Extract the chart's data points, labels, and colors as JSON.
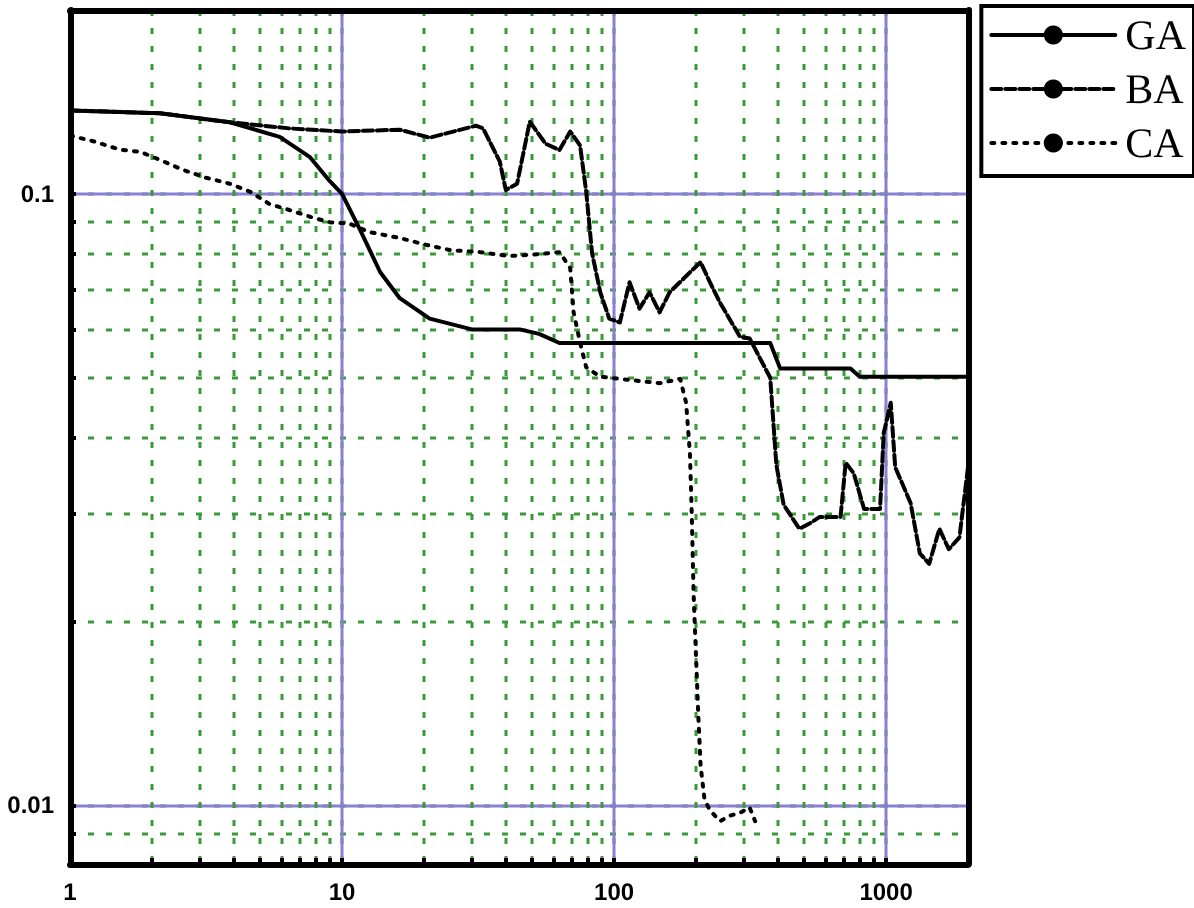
{
  "chart_data": {
    "type": "line",
    "log": "xy",
    "grid": true,
    "legend": "top right",
    "marker": "none",
    "xlim": [
      1,
      2000
    ],
    "xticks": [
      1,
      {
        "value": 2,
        "label": null
      },
      {
        "value": 3,
        "label": null
      },
      {
        "value": 4,
        "label": null
      },
      {
        "value": 5,
        "label": null
      },
      {
        "value": 6,
        "label": null
      },
      {
        "value": 7,
        "label": null
      },
      {
        "value": 8,
        "label": null
      },
      {
        "value": 9,
        "label": null
      },
      10,
      {
        "value": 20,
        "label": null
      },
      {
        "value": 30,
        "label": null
      },
      {
        "value": 40,
        "label": null
      },
      {
        "value": 50,
        "label": null
      },
      {
        "value": 60,
        "label": null
      },
      {
        "value": 70,
        "label": null
      },
      {
        "value": 80,
        "label": null
      },
      {
        "value": 90,
        "label": null
      },
      100,
      {
        "value": 200,
        "label": null
      },
      {
        "value": 300,
        "label": null
      },
      {
        "value": 400,
        "label": null
      },
      {
        "value": 500,
        "label": null
      },
      {
        "value": 600,
        "label": null
      },
      {
        "value": 700,
        "label": null
      },
      {
        "value": 800,
        "label": null
      },
      {
        "value": 900,
        "label": null
      },
      1000
    ],
    "ylim": [
      0.008,
      0.2
    ],
    "yticks": [
      {
        "value": 0.009,
        "label": null
      },
      0.01,
      {
        "value": 0.02,
        "label": null
      },
      {
        "value": 0.03,
        "label": null
      },
      {
        "value": 0.04,
        "label": null
      },
      {
        "value": 0.05,
        "label": null
      },
      {
        "value": 0.06,
        "label": null
      },
      {
        "value": 0.07,
        "label": null
      },
      {
        "value": 0.08,
        "label": null
      },
      {
        "value": 0.09,
        "label": null
      },
      0.1,
      {
        "value": 0.2,
        "label": null
      }
    ],
    "series": [
      {
        "name": "GA",
        "color": "#000000",
        "line_style": "solid",
        "x": [
          1,
          2.14,
          3.87,
          5.9,
          7.6,
          9,
          10,
          11.7,
          13.8,
          16.3,
          21,
          30,
          45,
          53,
          63,
          89,
          343,
          375,
          408,
          740,
          800,
          2000
        ],
        "values": [
          0.137,
          0.1355,
          0.131,
          0.124,
          0.115,
          0.105,
          0.1,
          0.087,
          0.0745,
          0.0675,
          0.0625,
          0.06,
          0.06,
          0.059,
          0.057,
          0.057,
          0.057,
          0.057,
          0.0518,
          0.0518,
          0.0502,
          0.0502
        ]
      },
      {
        "name": "BA",
        "color": "#000000",
        "line_style": "dashed",
        "x": [
          1,
          2.14,
          3.87,
          6.4,
          10,
          16.3,
          21,
          31,
          33,
          38,
          40,
          44,
          49,
          56,
          63,
          69,
          75,
          79,
          83,
          89,
          96,
          105,
          114,
          124,
          135,
          147,
          160,
          190,
          208,
          225,
          245,
          290,
          315,
          375,
          395,
          420,
          480,
          525,
          570,
          680,
          710,
          760,
          830,
          950,
          980,
          1040,
          1080,
          1230,
          1330,
          1440,
          1570,
          1700,
          1860,
          2000
        ],
        "values": [
          0.137,
          0.1355,
          0.131,
          0.128,
          0.1265,
          0.1274,
          0.1236,
          0.1293,
          0.128,
          0.113,
          0.1015,
          0.1039,
          0.1313,
          0.1208,
          0.118,
          0.1265,
          0.12,
          0.1008,
          0.08,
          0.069,
          0.0625,
          0.0616,
          0.0717,
          0.0649,
          0.069,
          0.064,
          0.069,
          0.0744,
          0.0773,
          0.0717,
          0.0664,
          0.0584,
          0.058,
          0.05,
          0.036,
          0.031,
          0.0283,
          0.0289,
          0.0296,
          0.0296,
          0.0363,
          0.0349,
          0.0305,
          0.0305,
          0.0406,
          0.0455,
          0.0357,
          0.0312,
          0.0258,
          0.0248,
          0.0283,
          0.0262,
          0.0274,
          0.0357
        ]
      },
      {
        "name": "CA",
        "color": "#000000",
        "line_style": "dotted",
        "x": [
          1,
          1.23,
          1.53,
          1.81,
          2.14,
          2.6,
          3.16,
          3.87,
          4.6,
          5.4,
          6.4,
          7.9,
          9,
          10.7,
          12.6,
          16.3,
          20,
          25,
          32,
          41,
          53,
          63,
          69,
          71,
          75,
          79,
          89,
          105,
          124,
          147,
          175,
          184,
          190,
          193,
          196,
          200,
          204,
          208,
          215,
          225,
          245,
          267,
          290,
          315,
          330
        ],
        "values": [
          0.1246,
          0.1218,
          0.1181,
          0.1172,
          0.1137,
          0.1095,
          0.1063,
          0.1039,
          0.1008,
          0.0963,
          0.0941,
          0.0913,
          0.0899,
          0.0893,
          0.0866,
          0.0847,
          0.0827,
          0.0809,
          0.0803,
          0.0791,
          0.0797,
          0.0803,
          0.0756,
          0.064,
          0.0571,
          0.052,
          0.0502,
          0.0498,
          0.0494,
          0.049,
          0.0498,
          0.0455,
          0.0377,
          0.03,
          0.0222,
          0.0176,
          0.014,
          0.0116,
          0.0102,
          0.0098,
          0.0094,
          0.0096,
          0.0097,
          0.0099,
          0.0094
        ]
      }
    ]
  }
}
